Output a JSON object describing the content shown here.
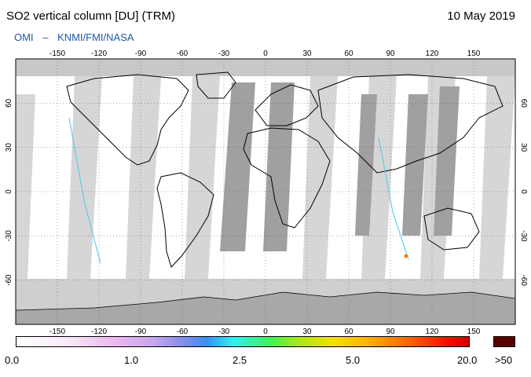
{
  "header": {
    "title": "SO2 vertical column [DU] (TRM)",
    "date": "10 May 2019",
    "credit_primary": "OMI",
    "credit_separator": "–",
    "credit_secondary": "KNMI/FMI/NASA"
  },
  "map": {
    "projection": "equirectangular",
    "lon_ticks": [
      "-150",
      "-120",
      "-90",
      "-60",
      "-30",
      "0",
      "30",
      "60",
      "90",
      "120",
      "150"
    ],
    "lat_ticks_left": [
      "60",
      "30",
      "0",
      "-30",
      "-60"
    ],
    "lat_ticks_right": [
      "60",
      "30",
      "0",
      "-30",
      "-60"
    ],
    "gridlines": true,
    "colors": {
      "land": "#ffffff",
      "ocean": "#ffffff",
      "swath_light": "#d4d4d4",
      "swath_dark": "#9e9e9e",
      "polar_fill": "#c8c8c8",
      "antarctica": "#a8a8a8",
      "coast": "#000000"
    }
  },
  "colorbar": {
    "labels": [
      "0.0",
      "1.0",
      "2.5",
      "5.0",
      "20.0",
      ">50"
    ],
    "overflow_color": "#5a0000"
  }
}
